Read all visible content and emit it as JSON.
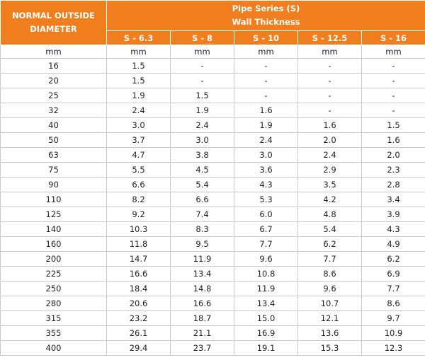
{
  "table": {
    "corner_label_line1": "NORMAL OUTSIDE",
    "corner_label_line2": "DIAMETER",
    "title_line1": "Pipe Series (S)",
    "title_line2": "Wall Thickness",
    "series": [
      "S - 6.3",
      "S - 8",
      "S - 10",
      "S - 12.5",
      "S - 16"
    ],
    "units": [
      "mm",
      "mm",
      "mm",
      "mm",
      "mm",
      "mm"
    ],
    "rows": [
      {
        "od": "16",
        "values": [
          "1.5",
          "-",
          "-",
          "-",
          "-"
        ]
      },
      {
        "od": "20",
        "values": [
          "1.5",
          "-",
          "-",
          "-",
          "-"
        ]
      },
      {
        "od": "25",
        "values": [
          "1.9",
          "1.5",
          "-",
          "-",
          "-"
        ]
      },
      {
        "od": "32",
        "values": [
          "2.4",
          "1.9",
          "1.6",
          "-",
          "-"
        ]
      },
      {
        "od": "40",
        "values": [
          "3.0",
          "2.4",
          "1.9",
          "1.6",
          "1.5"
        ]
      },
      {
        "od": "50",
        "values": [
          "3.7",
          "3.0",
          "2.4",
          "2.0",
          "1.6"
        ]
      },
      {
        "od": "63",
        "values": [
          "4.7",
          "3.8",
          "3.0",
          "2.4",
          "2.0"
        ]
      },
      {
        "od": "75",
        "values": [
          "5.5",
          "4.5",
          "3.6",
          "2.9",
          "2.3"
        ]
      },
      {
        "od": "90",
        "values": [
          "6.6",
          "5.4",
          "4.3",
          "3.5",
          "2.8"
        ]
      },
      {
        "od": "110",
        "values": [
          "8.2",
          "6.6",
          "5.3",
          "4.2",
          "3.4"
        ]
      },
      {
        "od": "125",
        "values": [
          "9.2",
          "7.4",
          "6.0",
          "4.8",
          "3.9"
        ]
      },
      {
        "od": "140",
        "values": [
          "10.3",
          "8.3",
          "6.7",
          "5.4",
          "4.3"
        ]
      },
      {
        "od": "160",
        "values": [
          "11.8",
          "9.5",
          "7.7",
          "6.2",
          "4.9"
        ]
      },
      {
        "od": "200",
        "values": [
          "14.7",
          "11.9",
          "9.6",
          "7.7",
          "6.2"
        ]
      },
      {
        "od": "225",
        "values": [
          "16.6",
          "13.4",
          "10.8",
          "8.6",
          "6.9"
        ]
      },
      {
        "od": "250",
        "values": [
          "18.4",
          "14.8",
          "11.9",
          "9.6",
          "7.7"
        ]
      },
      {
        "od": "280",
        "values": [
          "20.6",
          "16.6",
          "13.4",
          "10.7",
          "8.6"
        ]
      },
      {
        "od": "315",
        "values": [
          "23.2",
          "18.7",
          "15.0",
          "12.1",
          "9.7"
        ]
      },
      {
        "od": "355",
        "values": [
          "26.1",
          "21.1",
          "16.9",
          "13.6",
          "10.9"
        ]
      },
      {
        "od": "400",
        "values": [
          "29.4",
          "23.7",
          "19.1",
          "15.3",
          "12.3"
        ]
      }
    ]
  },
  "colors": {
    "header_bg": "#f07e1e",
    "header_text": "#ffffff",
    "grid_line": "#c9c9c9",
    "body_text": "#222222"
  }
}
